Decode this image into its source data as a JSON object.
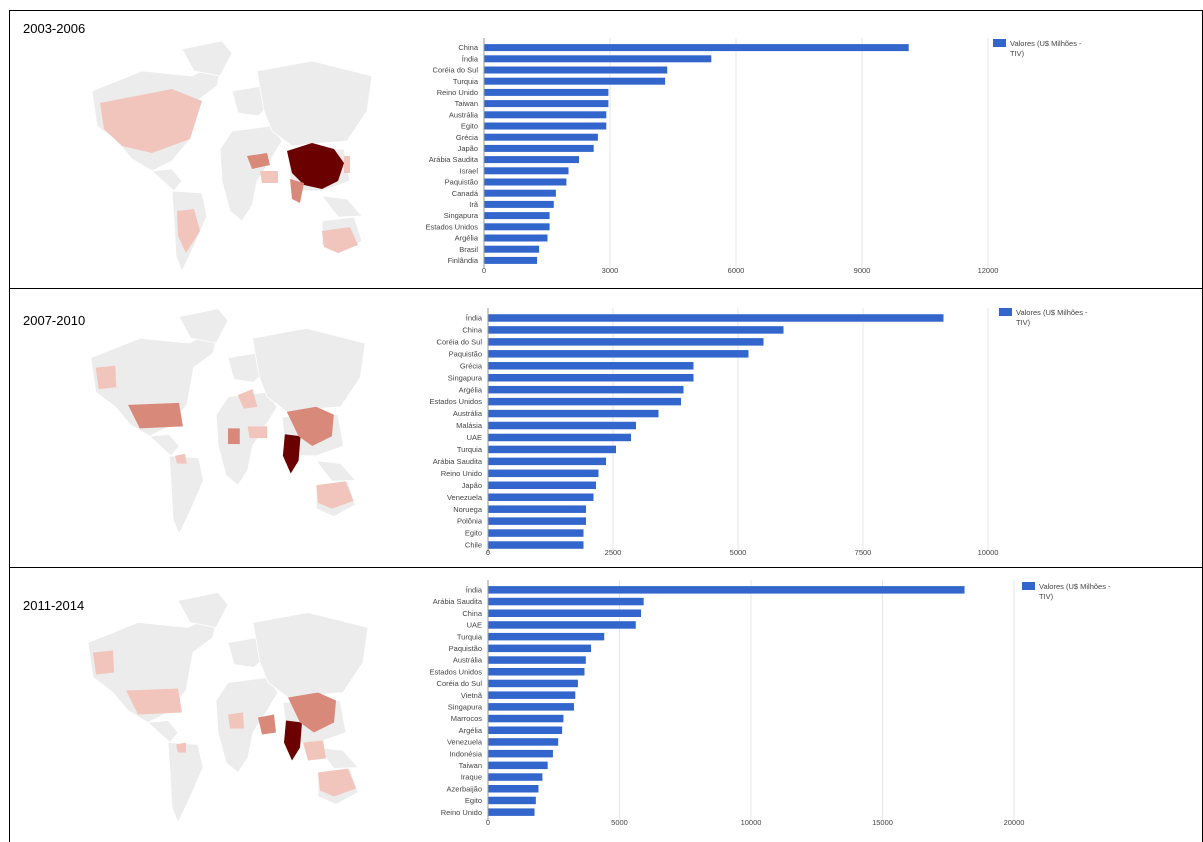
{
  "colors": {
    "bar": "#3366cc",
    "grid": "#e6e6e6",
    "map_base": "#ececec",
    "map_dark": "#6b0000",
    "map_mid": "#d9897a",
    "map_light": "#f2c5bc"
  },
  "chart_data": [
    {
      "type": "bar",
      "orientation": "horizontal",
      "title": "2003-2006",
      "legend": "Valores (U$ Milhões - TIV)",
      "legend_line1": "Valores (U$ Milhões -",
      "legend_line2": "TIV)",
      "legend_position": "top-right",
      "xlim": [
        0,
        12000
      ],
      "xticks": [
        0,
        3000,
        6000,
        9000,
        12000
      ],
      "xtick_labels": [
        "0",
        "3000",
        "6000",
        "9000",
        "12000"
      ],
      "categories": [
        "China",
        "Índia",
        "Coréia do Sul",
        "Turquia",
        "Reino Unido",
        "Taiwan",
        "Austrália",
        "Egito",
        "Grécia",
        "Japão",
        "Arábia Saudita",
        "Israel",
        "Paquistão",
        "Canadá",
        "Irã",
        "Singapura",
        "Estados Unidos",
        "Argélia",
        "Brasil",
        "Finlândia"
      ],
      "values": [
        10100,
        5400,
        4350,
        4300,
        2950,
        2950,
        2900,
        2900,
        2700,
        2600,
        2250,
        2000,
        1950,
        1700,
        1650,
        1550,
        1550,
        1500,
        1300,
        1250
      ]
    },
    {
      "type": "bar",
      "orientation": "horizontal",
      "title": "2007-2010",
      "legend": "Valores (U$ Milhões - TIV)",
      "legend_line1": "Valores (U$ Milhões -",
      "legend_line2": "TIV)",
      "legend_position": "top-right",
      "xlim": [
        0,
        10000
      ],
      "xticks": [
        0,
        2500,
        5000,
        7500,
        10000
      ],
      "xtick_labels": [
        "0",
        "2500",
        "5000",
        "7500",
        "10000"
      ],
      "categories": [
        "Índia",
        "China",
        "Coréia do Sul",
        "Paquistão",
        "Grécia",
        "Singapura",
        "Argélia",
        "Estados Unidos",
        "Austrália",
        "Malásia",
        "UAE",
        "Turquia",
        "Arábia Saudita",
        "Reino Unido",
        "Japão",
        "Venezuela",
        "Noruega",
        "Polônia",
        "Egito",
        "Chile"
      ],
      "values": [
        9100,
        5900,
        5500,
        5200,
        4100,
        4100,
        3900,
        3850,
        3400,
        2950,
        2850,
        2550,
        2350,
        2200,
        2150,
        2100,
        1950,
        1950,
        1900,
        1900
      ]
    },
    {
      "type": "bar",
      "orientation": "horizontal",
      "title": "2011-2014",
      "legend": "Valores (U$ Milhões - TIV)",
      "legend_line1": "Valores (U$ Milhões -",
      "legend_line2": "TIV)",
      "legend_position": "top-right",
      "xlim": [
        0,
        20000
      ],
      "xticks": [
        0,
        5000,
        10000,
        15000,
        20000
      ],
      "xtick_labels": [
        "0",
        "5000",
        "10000",
        "15000",
        "20000"
      ],
      "categories": [
        "Índia",
        "Arábia Saudita",
        "China",
        "UAE",
        "Turquia",
        "Paquistão",
        "Austrália",
        "Estados Unidos",
        "Coréia do Sul",
        "Vietnã",
        "Singapura",
        "Marrocos",
        "Argélia",
        "Venezuela",
        "Indonésia",
        "Taiwan",
        "Iraque",
        "Azerbaijão",
        "Egito",
        "Reino Unido"
      ],
      "values": [
        18100,
        5900,
        5800,
        5600,
        4400,
        3900,
        3700,
        3650,
        3400,
        3300,
        3250,
        2850,
        2800,
        2650,
        2450,
        2250,
        2050,
        1900,
        1800,
        1750
      ]
    }
  ]
}
